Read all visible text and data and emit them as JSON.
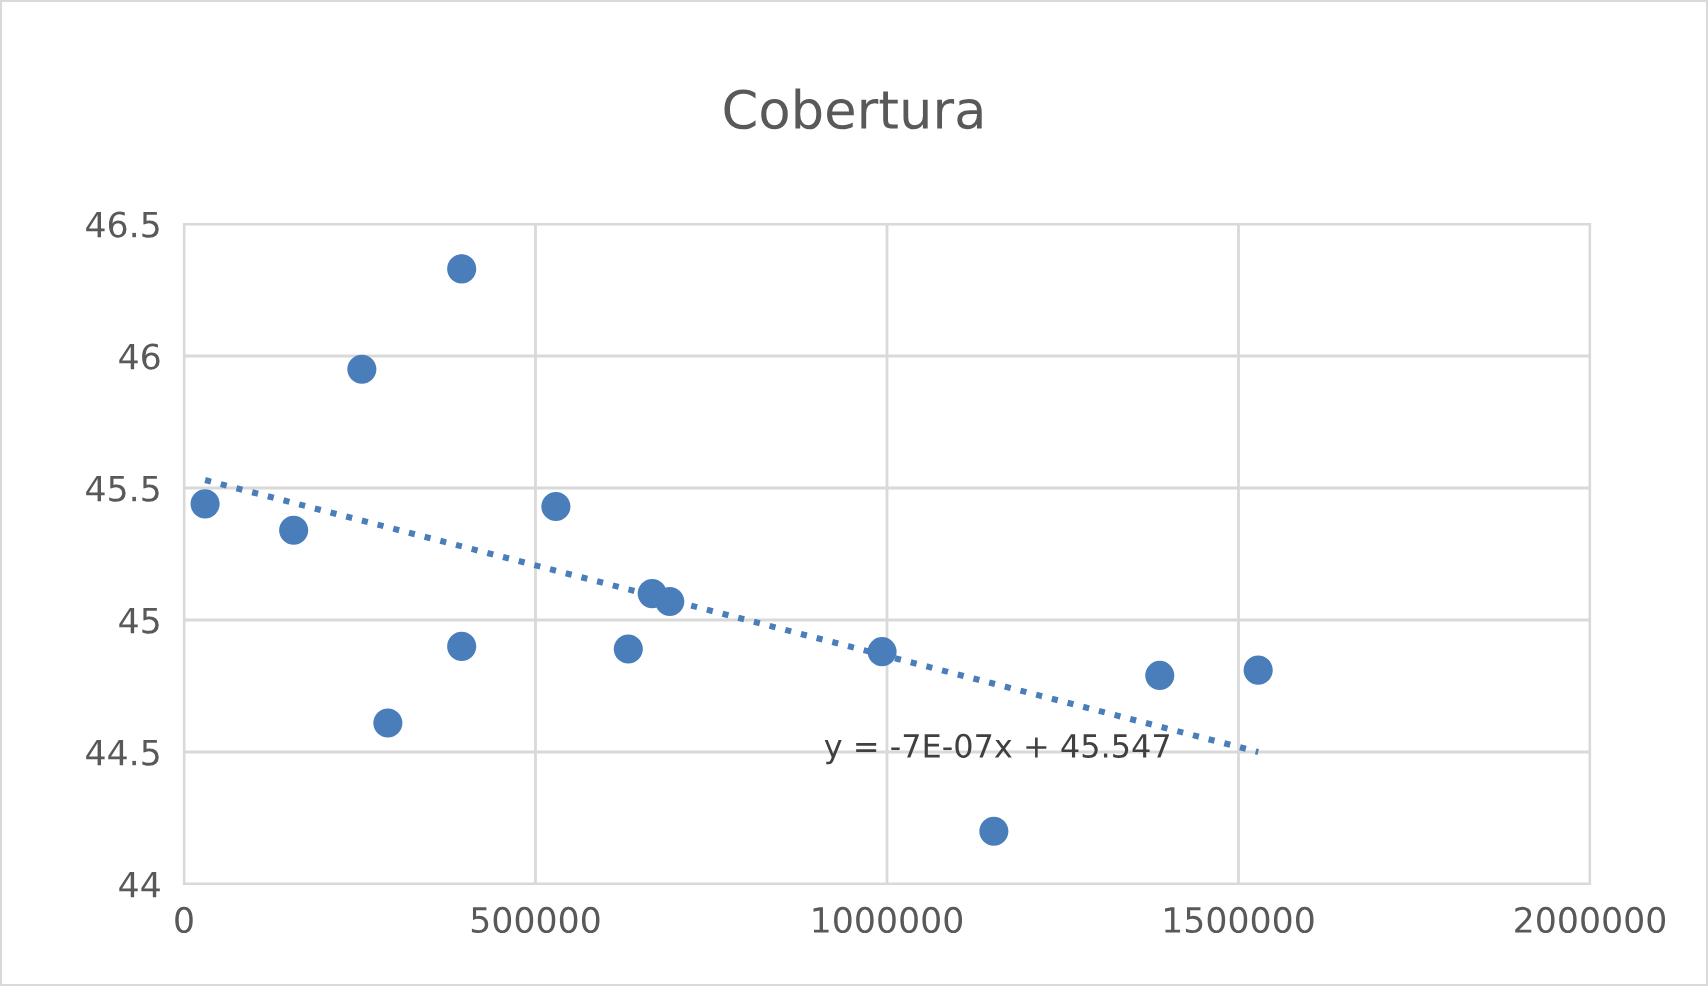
{
  "chart_data": {
    "type": "scatter",
    "title": "Cobertura",
    "x": [
      30000,
      156000,
      253000,
      290000,
      395000,
      395000,
      529000,
      632000,
      666000,
      691000,
      993000,
      1152000,
      1388000,
      1528000
    ],
    "series": [
      {
        "color": "#4a7ebb",
        "marker": "circle",
        "values": [
          45.44,
          45.34,
          45.95,
          44.61,
          46.33,
          44.9,
          45.43,
          44.89,
          45.1,
          45.07,
          44.88,
          44.2,
          44.79,
          44.81
        ]
      },
      {
        "type": "line",
        "color": "#4a7ebb",
        "line_style": "dotted",
        "marker": "none",
        "x": [
          30000,
          1528000
        ],
        "values": [
          45.53,
          44.5
        ]
      }
    ],
    "annotations": [
      "y = -7E-07x + 45.547"
    ],
    "xlim": [
      0,
      2000000
    ],
    "xticks": [
      0,
      500000,
      1000000,
      1500000,
      2000000
    ],
    "ylim": [
      44,
      46.5
    ],
    "yticks": [
      44,
      44.5,
      45,
      45.5,
      46,
      46.5
    ],
    "grid": true,
    "legend": false
  }
}
